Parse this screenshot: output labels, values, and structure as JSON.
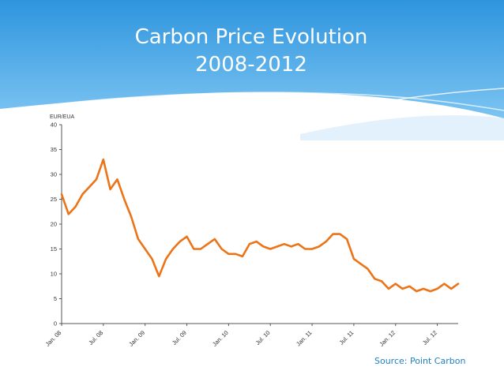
{
  "slide": {
    "title_line1": "Carbon Price Evolution",
    "title_line2": "2008-2012",
    "source": "Source: Point Carbon",
    "header_color": "#3fa3e6"
  },
  "chart_data": {
    "type": "line",
    "title": "",
    "ylabel": "EUR/EUA",
    "xlabel": "",
    "ylim": [
      0,
      40
    ],
    "yticks": [
      0,
      5,
      10,
      15,
      20,
      25,
      30,
      35,
      40
    ],
    "xticks": [
      "Jan. 08",
      "Jul. 08",
      "Jan. 09",
      "Jul. 09",
      "Jan. 10",
      "Jul. 10",
      "Jan. 11",
      "Jul. 11",
      "Jan. 12",
      "Jul. 12"
    ],
    "xlim": [
      "2008-01",
      "2012-10"
    ],
    "grid": false,
    "color": "#ec7418",
    "series": [
      {
        "x": [
          "2008-01",
          "2008-02",
          "2008-03",
          "2008-04",
          "2008-05",
          "2008-06",
          "2008-07",
          "2008-08",
          "2008-09",
          "2008-10",
          "2008-11",
          "2008-12",
          "2009-01",
          "2009-02",
          "2009-03",
          "2009-04",
          "2009-05",
          "2009-06",
          "2009-07",
          "2009-08",
          "2009-09",
          "2009-10",
          "2009-11",
          "2009-12",
          "2010-01",
          "2010-02",
          "2010-03",
          "2010-04",
          "2010-05",
          "2010-06",
          "2010-07",
          "2010-08",
          "2010-09",
          "2010-10",
          "2010-11",
          "2010-12",
          "2011-01",
          "2011-02",
          "2011-03",
          "2011-04",
          "2011-05",
          "2011-06",
          "2011-07",
          "2011-08",
          "2011-09",
          "2011-10",
          "2011-11",
          "2011-12",
          "2012-01",
          "2012-02",
          "2012-03",
          "2012-04",
          "2012-05",
          "2012-06",
          "2012-07",
          "2012-08",
          "2012-09",
          "2012-10"
        ],
        "values": [
          26,
          22,
          23.5,
          26,
          27.5,
          29,
          33,
          27,
          29,
          25,
          21.5,
          17,
          15,
          13,
          9.5,
          13,
          15,
          16.5,
          17.5,
          15,
          15,
          16,
          17,
          15,
          14,
          14,
          13.5,
          16,
          16.5,
          15.5,
          15,
          15.5,
          16,
          15.5,
          16,
          15,
          15,
          15.5,
          16.5,
          18,
          18,
          17,
          13,
          12,
          11,
          9,
          8.5,
          7,
          8,
          7,
          7.5,
          6.5,
          7,
          6.5,
          7,
          8,
          7,
          8
        ]
      }
    ]
  }
}
